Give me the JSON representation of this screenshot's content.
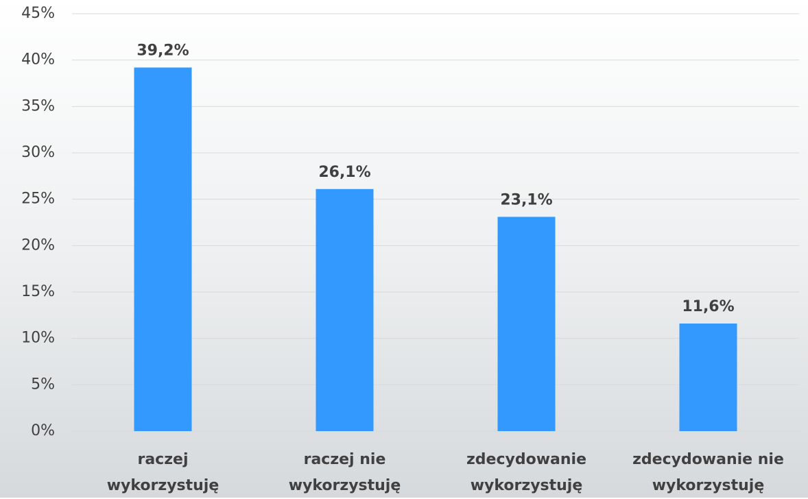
{
  "chart_data": {
    "type": "bar",
    "categories": [
      "raczej\nwykorzystuję",
      "raczej nie\nwykorzystuję",
      "zdecydowanie\nwykorzystuję",
      "zdecydowanie nie\nwykorzystuję"
    ],
    "values": [
      39.2,
      26.1,
      23.1,
      11.6
    ],
    "value_labels": [
      "39,2%",
      "26,1%",
      "23,1%",
      "11,6%"
    ],
    "color": "#3399ff",
    "ylim": [
      0,
      45
    ],
    "yticks": [
      {
        "value": 0,
        "label": "0%"
      },
      {
        "value": 5,
        "label": "5%"
      },
      {
        "value": 10,
        "label": "10%"
      },
      {
        "value": 15,
        "label": "15%"
      },
      {
        "value": 20,
        "label": "20%"
      },
      {
        "value": 25,
        "label": "25%"
      },
      {
        "value": 30,
        "label": "30%"
      },
      {
        "value": 35,
        "label": "35%"
      },
      {
        "value": 40,
        "label": "40%"
      },
      {
        "value": 45,
        "label": "45%"
      }
    ],
    "grid": true
  }
}
